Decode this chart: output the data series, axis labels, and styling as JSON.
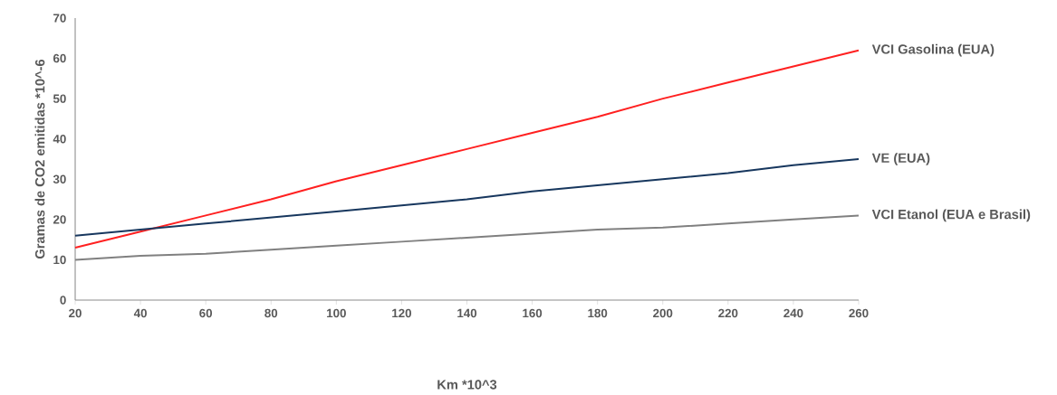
{
  "chart_data": {
    "type": "line",
    "xlabel": "Km *10^3",
    "ylabel": "Gramas de CO2 emitidas *10^-6",
    "x": [
      20,
      40,
      60,
      80,
      100,
      120,
      140,
      160,
      180,
      200,
      220,
      240,
      260
    ],
    "series": [
      {
        "name": "VCI Gasolina (EUA)",
        "color": "#ff2020",
        "values": [
          13,
          17,
          21,
          25,
          29.5,
          33.5,
          37.5,
          41.5,
          45.5,
          50,
          54,
          58,
          62
        ]
      },
      {
        "name": "VE (EUA)",
        "color": "#17375e",
        "values": [
          16,
          17.5,
          19,
          20.5,
          22,
          23.5,
          25,
          27,
          28.5,
          30,
          31.5,
          33.5,
          35
        ]
      },
      {
        "name": "VCI Etanol (EUA e Brasil)",
        "color": "#808080",
        "values": [
          10,
          11,
          11.5,
          12.5,
          13.5,
          14.5,
          15.5,
          16.5,
          17.5,
          18,
          19,
          20,
          21
        ]
      }
    ],
    "xlim": [
      20,
      260
    ],
    "xticks": [
      20,
      40,
      60,
      80,
      100,
      120,
      140,
      160,
      180,
      200,
      220,
      240,
      260
    ],
    "ylim": [
      0,
      70
    ],
    "yticks": [
      0,
      10,
      20,
      30,
      40,
      50,
      60,
      70
    ],
    "grid": false,
    "legend": false,
    "marker": "none",
    "line_style": "solid"
  }
}
